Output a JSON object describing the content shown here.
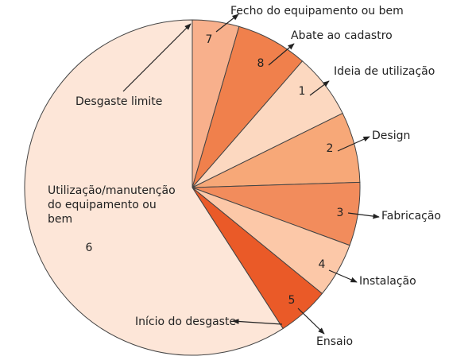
{
  "chart_data": {
    "type": "pie",
    "categories": [
      "7",
      "8",
      "1",
      "2",
      "3",
      "4",
      "5",
      "6"
    ],
    "values": [
      4.5,
      6.9,
      6.3,
      6.8,
      6.1,
      5.3,
      5.0,
      59.1
    ],
    "colors": [
      "#f8b08c",
      "#f0804c",
      "#fcd8c0",
      "#f7a878",
      "#f28c5c",
      "#fcc8a8",
      "#ea5a28",
      "#fde6d8"
    ],
    "annotations": [
      "Fecho do equipamento ou bem",
      "Abate ao cadastro",
      "Ideia de utilização",
      "Design",
      "Fabricação",
      "Instalação",
      "Ensaio",
      "Início do desgaste",
      "Desgaste limite",
      "Utilização/manutenção do equipamento ou bem"
    ]
  }
}
